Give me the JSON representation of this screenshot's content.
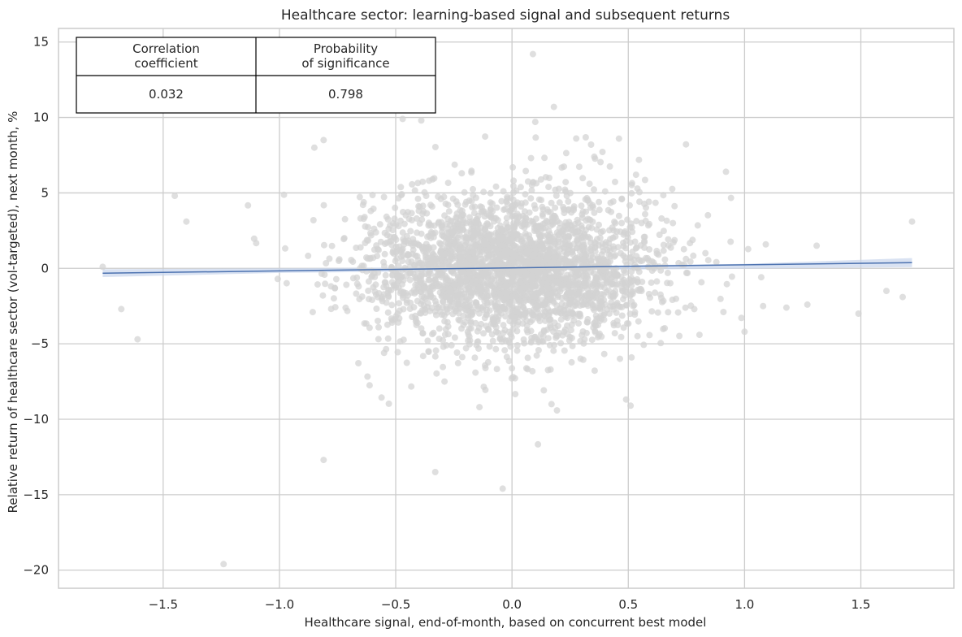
{
  "chart_data": {
    "type": "scatter",
    "title": "Healthcare sector: learning-based signal and subsequent returns",
    "xlabel": "Healthcare signal, end-of-month, based on concurrent best model",
    "ylabel": "Relative return of healthcare sector (vol-targeted), next month, %",
    "xlim": [
      -1.95,
      1.9
    ],
    "ylim": [
      -21.2,
      15.9
    ],
    "xticks": [
      -1.5,
      -1.0,
      -0.5,
      0.0,
      0.5,
      1.0,
      1.5
    ],
    "xtick_labels": [
      "−1.5",
      "−1.0",
      "−0.5",
      "0.0",
      "0.5",
      "1.0",
      "1.5"
    ],
    "yticks": [
      -20,
      -15,
      -10,
      -5,
      0,
      5,
      10,
      15
    ],
    "ytick_labels": [
      "−20",
      "−15",
      "−10",
      "−5",
      "0",
      "5",
      "10",
      "15"
    ],
    "grid": true,
    "colors": {
      "points": "#d3d3d3",
      "regression_line": "#4c72b0",
      "confidence_band": "#c9d6ec",
      "grid": "#cccccc",
      "axes_frame": "#cccccc"
    },
    "regression_line": {
      "x": [
        -1.76,
        1.72
      ],
      "y": [
        -0.32,
        0.38
      ]
    },
    "confidence_band": {
      "x": [
        -1.76,
        -1.0,
        0.0,
        1.0,
        1.72
      ],
      "lower": [
        -0.58,
        -0.3,
        -0.14,
        -0.02,
        0.08
      ],
      "upper": [
        -0.06,
        0.0,
        0.1,
        0.3,
        0.68
      ]
    },
    "scatter": {
      "n_points": 3000,
      "center_x": 0.0,
      "sd_x": 0.32,
      "center_y": 0.0,
      "sd_y": 2.3,
      "outliers": [
        [
          -1.24,
          -19.6
        ],
        [
          -0.33,
          -13.5
        ],
        [
          -0.81,
          -12.7
        ],
        [
          -0.04,
          -14.6
        ],
        [
          0.09,
          14.2
        ],
        [
          0.18,
          10.7
        ],
        [
          0.1,
          9.7
        ],
        [
          -0.81,
          8.5
        ],
        [
          -0.85,
          8.0
        ],
        [
          -1.45,
          4.8
        ],
        [
          -1.4,
          3.1
        ],
        [
          1.72,
          3.1
        ],
        [
          1.49,
          -3.0
        ],
        [
          1.61,
          -1.5
        ],
        [
          1.68,
          -1.9
        ],
        [
          -1.68,
          -2.7
        ],
        [
          -1.61,
          -4.7
        ],
        [
          -1.76,
          0.1
        ],
        [
          1.31,
          1.5
        ],
        [
          1.27,
          -2.4
        ],
        [
          0.92,
          6.4
        ],
        [
          0.46,
          8.6
        ],
        [
          -0.47,
          9.9
        ],
        [
          -0.39,
          9.8
        ],
        [
          0.34,
          8.2
        ],
        [
          1.0,
          -4.2
        ],
        [
          1.18,
          -2.6
        ],
        [
          0.17,
          -9.0
        ],
        [
          -0.14,
          -9.2
        ],
        [
          0.51,
          -9.1
        ],
        [
          -0.55,
          -5.6
        ],
        [
          -0.29,
          -7.5
        ]
      ]
    },
    "stats_table": {
      "headers": [
        "Correlation\ncoefficient",
        "Probability\nof significance"
      ],
      "values": [
        "0.032",
        "0.798"
      ]
    }
  }
}
